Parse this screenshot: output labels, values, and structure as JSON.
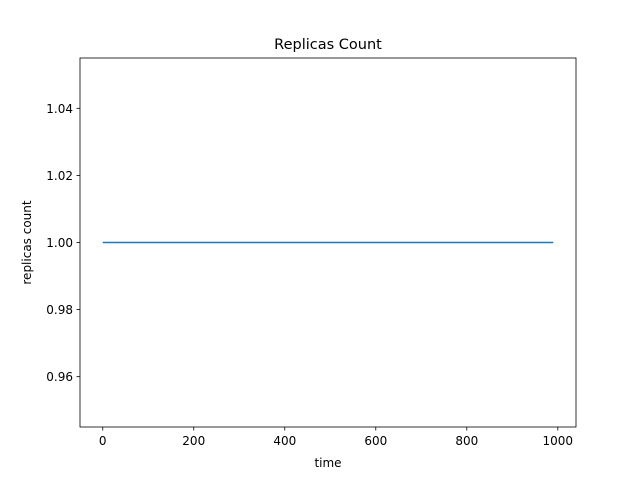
{
  "chart_data": {
    "type": "line",
    "title": "Replicas Count",
    "xlabel": "time",
    "ylabel": "replicas count",
    "xlim": [
      -50,
      1040
    ],
    "ylim": [
      0.945,
      1.055
    ],
    "x_ticks": [
      0,
      200,
      400,
      600,
      800,
      1000
    ],
    "x_tick_labels": [
      "0",
      "200",
      "400",
      "600",
      "800",
      "1000"
    ],
    "y_ticks": [
      0.96,
      0.98,
      1.0,
      1.02,
      1.04
    ],
    "y_tick_labels": [
      "0.96",
      "0.98",
      "1.00",
      "1.02",
      "1.04"
    ],
    "grid": false,
    "series": [
      {
        "color": "#1f77b4",
        "x": [
          0,
          990
        ],
        "y": [
          1.0,
          1.0
        ]
      }
    ]
  }
}
